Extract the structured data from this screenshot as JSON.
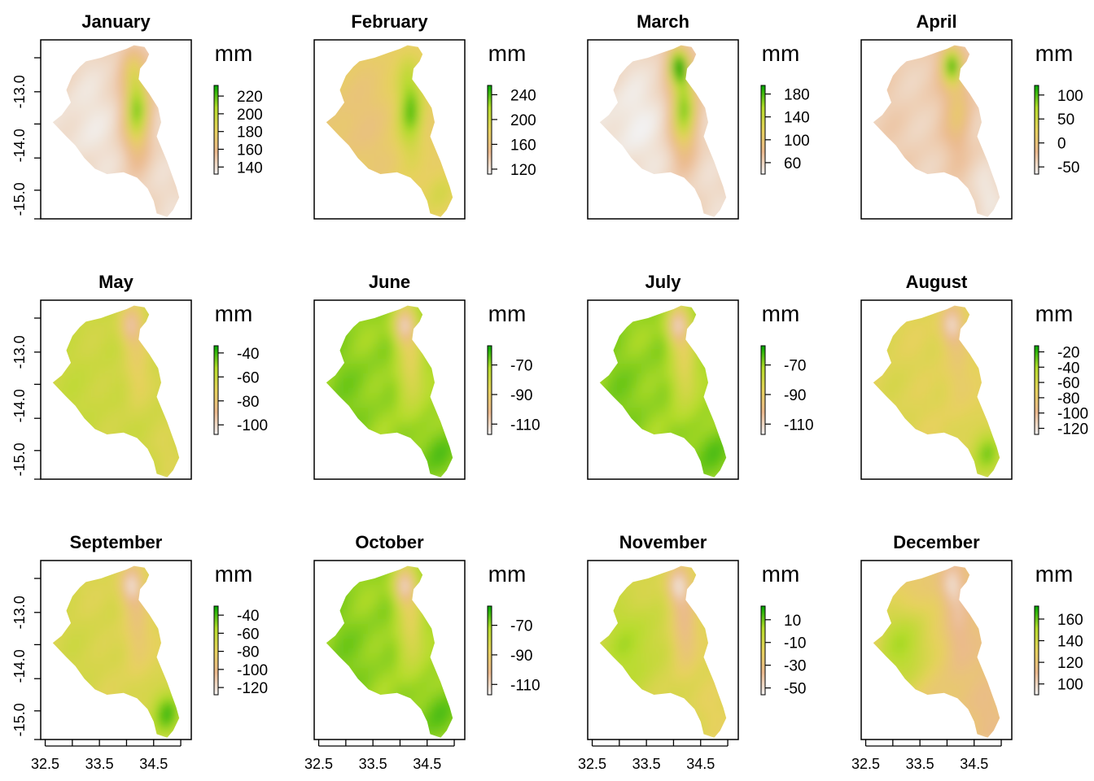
{
  "colors": {
    "ramp_low": "#f2f2f2",
    "ramp_1": "#ebb98e",
    "ramp_2": "#e6d25c",
    "ramp_3": "#b4dc2a",
    "ramp_high": "#00a600"
  },
  "x_axis_ticks": [
    "32.5",
    "33.5",
    "34.5"
  ],
  "y_axis_ticks": [
    "-13.0",
    "-14.0",
    "-15.0"
  ],
  "chart_data": [
    {
      "type": "heatmap",
      "title": "January",
      "legend_title": "mm",
      "legend_ticks": [
        220,
        200,
        180,
        160,
        140
      ],
      "legend_range": [
        132,
        232
      ],
      "field": {
        "base": 0.12,
        "west": 0.05,
        "east_ridge": 0.85,
        "south": 0.1,
        "north_east": 0.3
      }
    },
    {
      "type": "heatmap",
      "title": "February",
      "legend_title": "mm",
      "legend_ticks": [
        240,
        200,
        160,
        120
      ],
      "legend_range": [
        112,
        255
      ],
      "field": {
        "base": 0.45,
        "west": 0.35,
        "east_ridge": 0.9,
        "south": 0.6,
        "north_east": 0.5
      }
    },
    {
      "type": "heatmap",
      "title": "March",
      "legend_title": "mm",
      "legend_ticks": [
        180,
        140,
        100,
        60
      ],
      "legend_range": [
        40,
        195
      ],
      "field": {
        "base": 0.12,
        "west": 0.02,
        "east_ridge": 0.85,
        "south": 0.1,
        "north_east": 0.9
      }
    },
    {
      "type": "heatmap",
      "title": "April",
      "legend_title": "mm",
      "legend_ticks": [
        100,
        50,
        0,
        -50
      ],
      "legend_range": [
        -65,
        120
      ],
      "field": {
        "base": 0.15,
        "west": 0.15,
        "east_ridge": 0.4,
        "south": 0.05,
        "north_east": 0.9
      }
    },
    {
      "type": "heatmap",
      "title": "May",
      "legend_title": "mm",
      "legend_ticks": [
        -40,
        -60,
        -80,
        -100
      ],
      "legend_range": [
        -108,
        -34
      ],
      "field": {
        "base": 0.62,
        "west": 0.65,
        "east_ridge": 0.45,
        "south": 0.55,
        "north_east": 0.2
      }
    },
    {
      "type": "heatmap",
      "title": "June",
      "legend_title": "mm",
      "legend_ticks": [
        -70,
        -90,
        -110
      ],
      "legend_range": [
        -117,
        -57
      ],
      "field": {
        "base": 0.78,
        "west": 0.82,
        "east_ridge": 0.5,
        "south": 0.9,
        "north_east": 0.15
      }
    },
    {
      "type": "heatmap",
      "title": "July",
      "legend_title": "mm",
      "legend_ticks": [
        -70,
        -90,
        -110
      ],
      "legend_range": [
        -117,
        -57
      ],
      "field": {
        "base": 0.78,
        "west": 0.82,
        "east_ridge": 0.5,
        "south": 0.9,
        "north_east": 0.15
      }
    },
    {
      "type": "heatmap",
      "title": "August",
      "legend_title": "mm",
      "legend_ticks": [
        -20,
        -40,
        -60,
        -80,
        -100,
        -120
      ],
      "legend_range": [
        -128,
        -12
      ],
      "field": {
        "base": 0.52,
        "west": 0.55,
        "east_ridge": 0.4,
        "south": 0.85,
        "north_east": 0.1
      }
    },
    {
      "type": "heatmap",
      "title": "September",
      "legend_title": "mm",
      "legend_ticks": [
        -40,
        -60,
        -80,
        -100,
        -120
      ],
      "legend_range": [
        -128,
        -30
      ],
      "field": {
        "base": 0.55,
        "west": 0.6,
        "east_ridge": 0.35,
        "south": 0.92,
        "north_east": 0.1
      }
    },
    {
      "type": "heatmap",
      "title": "October",
      "legend_title": "mm",
      "legend_ticks": [
        -70,
        -90,
        -110
      ],
      "legend_range": [
        -117,
        -57
      ],
      "field": {
        "base": 0.78,
        "west": 0.82,
        "east_ridge": 0.5,
        "south": 0.9,
        "north_east": 0.15
      }
    },
    {
      "type": "heatmap",
      "title": "November",
      "legend_title": "mm",
      "legend_ticks": [
        10,
        -10,
        -30,
        -50
      ],
      "legend_range": [
        -56,
        22
      ],
      "field": {
        "base": 0.55,
        "west": 0.75,
        "east_ridge": 0.25,
        "south": 0.5,
        "north_east": 0.1
      }
    },
    {
      "type": "heatmap",
      "title": "December",
      "legend_title": "mm",
      "legend_ticks": [
        160,
        140,
        120,
        100
      ],
      "legend_range": [
        90,
        172
      ],
      "field": {
        "base": 0.35,
        "west": 0.75,
        "east_ridge": 0.2,
        "south": 0.3,
        "north_east": 0.1
      }
    }
  ]
}
